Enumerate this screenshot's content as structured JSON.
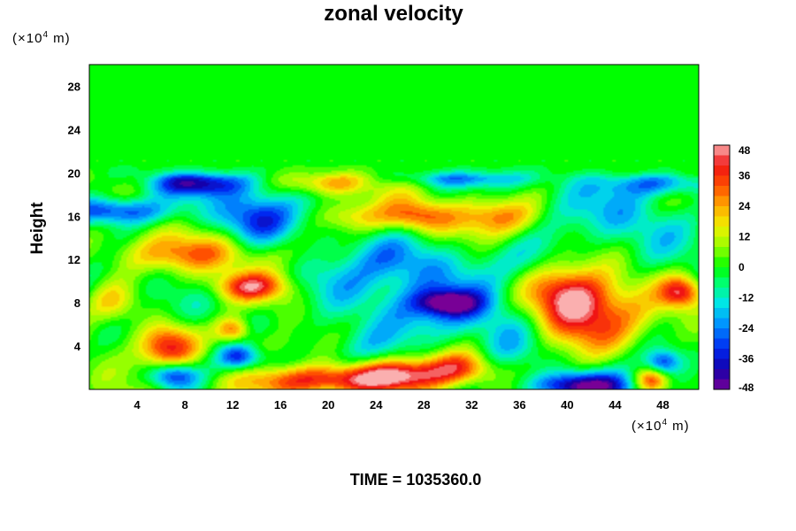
{
  "chart_data": {
    "type": "heatmap",
    "title": "zonal velocity",
    "ylabel": "Height",
    "x_unit_label": "(×10",
    "x_unit_exp": "4",
    "x_unit_suffix": " m)",
    "y_unit_label": "(×10",
    "y_unit_exp": "4",
    "y_unit_suffix": " m)",
    "xlim": [
      0,
      51
    ],
    "ylim": [
      0,
      30
    ],
    "x_ticks": [
      4,
      8,
      12,
      16,
      20,
      24,
      28,
      32,
      36,
      40,
      44,
      48
    ],
    "y_ticks": [
      4,
      8,
      12,
      16,
      20,
      24,
      28
    ],
    "colorbar": {
      "ticks": [
        48,
        36,
        24,
        12,
        0,
        -12,
        -24,
        -36,
        -48
      ],
      "range": [
        -48,
        48
      ]
    },
    "background_value": 0,
    "features": [
      {
        "x": 41,
        "y": 7,
        "sx": 3.2,
        "sy": 2.6,
        "value": 44
      },
      {
        "x": 40,
        "y": 9,
        "sx": 2.0,
        "sy": 1.5,
        "value": 15
      },
      {
        "x": 6.5,
        "y": 4,
        "sx": 1.7,
        "sy": 1.5,
        "value": 40
      },
      {
        "x": 13.5,
        "y": 9.5,
        "sx": 2.2,
        "sy": 0.9,
        "value": 34
      },
      {
        "x": 12,
        "y": 5.5,
        "sx": 1.0,
        "sy": 0.8,
        "value": 32
      },
      {
        "x": 20,
        "y": 0.8,
        "sx": 4.8,
        "sy": 1.0,
        "value": 46
      },
      {
        "x": 26,
        "y": 1.5,
        "sx": 3.0,
        "sy": 1.0,
        "value": 30
      },
      {
        "x": 31,
        "y": 2.0,
        "sx": 2.0,
        "sy": 1.0,
        "value": 28
      },
      {
        "x": 8,
        "y": 12.5,
        "sx": 5.0,
        "sy": 1.2,
        "value": 22
      },
      {
        "x": 20,
        "y": 19,
        "sx": 2.5,
        "sy": 0.8,
        "value": 24
      },
      {
        "x": 27.5,
        "y": 16,
        "sx": 2.0,
        "sy": 1.0,
        "value": 28
      },
      {
        "x": 34,
        "y": 16,
        "sx": 2.5,
        "sy": 1.2,
        "value": 26
      },
      {
        "x": 22,
        "y": 16,
        "sx": 2.0,
        "sy": 1.0,
        "value": 20
      },
      {
        "x": 49.5,
        "y": 9,
        "sx": 1.2,
        "sy": 1.0,
        "value": 36
      },
      {
        "x": 47,
        "y": 0.8,
        "sx": 1.0,
        "sy": 0.8,
        "value": 36
      },
      {
        "x": 15,
        "y": 4,
        "sx": 2.0,
        "sy": 1.0,
        "value": 12
      },
      {
        "x": 2,
        "y": 8,
        "sx": 1.5,
        "sy": 1.3,
        "value": 18
      },
      {
        "x": 41,
        "y": 0.3,
        "sx": 3.0,
        "sy": 0.9,
        "value": -48
      },
      {
        "x": 7,
        "y": 1.3,
        "sx": 1.5,
        "sy": 0.9,
        "value": -40
      },
      {
        "x": 2,
        "y": 16.5,
        "sx": 3.2,
        "sy": 0.9,
        "value": -38
      },
      {
        "x": 9,
        "y": 19,
        "sx": 3.0,
        "sy": 0.8,
        "value": -34
      },
      {
        "x": 14,
        "y": 16,
        "sx": 2.2,
        "sy": 1.6,
        "value": -32
      },
      {
        "x": 12.5,
        "y": 3,
        "sx": 1.2,
        "sy": 0.8,
        "value": -30
      },
      {
        "x": 28,
        "y": 7.5,
        "sx": 5.0,
        "sy": 2.2,
        "value": -22
      },
      {
        "x": 30,
        "y": 8,
        "sx": 1.8,
        "sy": 0.8,
        "value": -34
      },
      {
        "x": 35,
        "y": 4,
        "sx": 2.0,
        "sy": 2.0,
        "value": -14
      },
      {
        "x": 26,
        "y": 12,
        "sx": 3.5,
        "sy": 1.5,
        "value": -14
      },
      {
        "x": 36,
        "y": 12,
        "sx": 3.5,
        "sy": 1.5,
        "value": -12
      },
      {
        "x": 44,
        "y": 16,
        "sx": 4.0,
        "sy": 2.0,
        "value": -12
      },
      {
        "x": 31,
        "y": 19.5,
        "sx": 4.0,
        "sy": 0.6,
        "value": -20
      },
      {
        "x": 48,
        "y": 19,
        "sx": 3.0,
        "sy": 0.8,
        "value": -28
      },
      {
        "x": 48,
        "y": 2.5,
        "sx": 1.0,
        "sy": 0.8,
        "value": -30
      },
      {
        "x": 23,
        "y": 4,
        "sx": 2.5,
        "sy": 1.5,
        "value": -12
      },
      {
        "x": 20,
        "y": 10,
        "sx": 2.5,
        "sy": 1.5,
        "value": -10
      }
    ]
  },
  "footer": {
    "time_label": "TIME = 1035360.0"
  },
  "colors": {
    "background": "#00ff00"
  }
}
